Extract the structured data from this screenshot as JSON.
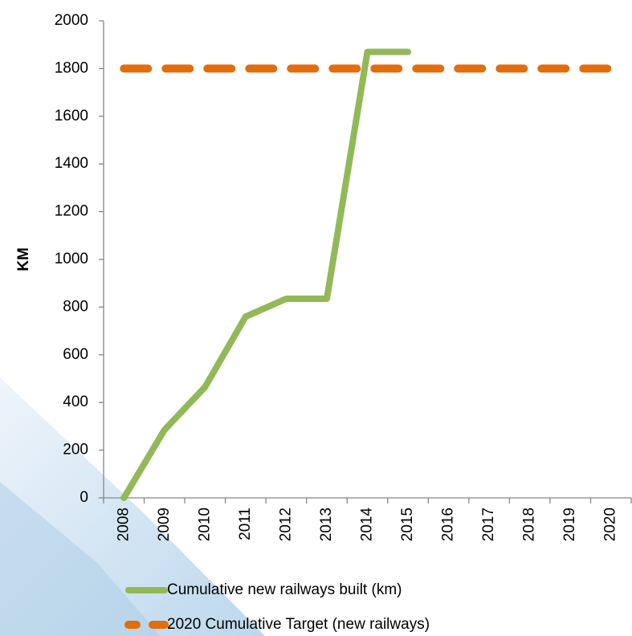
{
  "chart_data": {
    "type": "line",
    "ylabel": "KM",
    "categories": [
      "2008",
      "2009",
      "2010",
      "2011",
      "2012",
      "2013",
      "2014",
      "2015",
      "2016",
      "2017",
      "2018",
      "2019",
      "2020"
    ],
    "series": [
      {
        "name": "Cumulative new railways built (km)",
        "color": "#92b957",
        "dashed": false,
        "values": [
          0,
          285,
          465,
          760,
          835,
          835,
          1870,
          1870,
          null,
          null,
          null,
          null,
          null
        ]
      },
      {
        "name": "2020 Cumulative Target (new railways)",
        "color": "#e46c0a",
        "dashed": true,
        "values": [
          1800,
          1800,
          1800,
          1800,
          1800,
          1800,
          1800,
          1800,
          1800,
          1800,
          1800,
          1800,
          1800
        ]
      }
    ],
    "ylim": [
      0,
      2000
    ],
    "yticks": [
      0,
      200,
      400,
      600,
      800,
      1000,
      1200,
      1400,
      1600,
      1800,
      2000
    ],
    "grid": false
  }
}
